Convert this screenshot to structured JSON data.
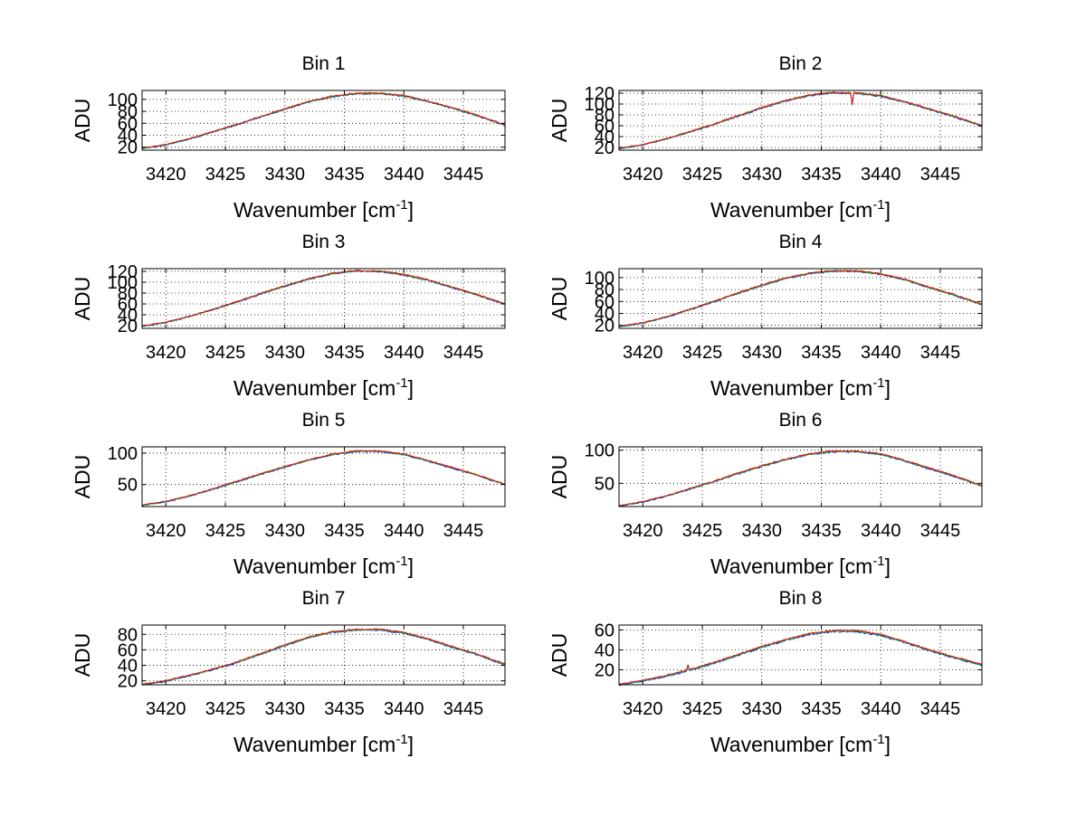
{
  "figure": {
    "background": "#ffffff",
    "grid": true,
    "grid_style": "dotted",
    "series_colors": [
      "#0000ff",
      "#00bfbf",
      "#00aa00",
      "#ff0000"
    ]
  },
  "chart_data": [
    {
      "type": "line",
      "title": "Bin 1",
      "xlabel": "Wavenumber [cm",
      "xlabel_sup": "-1",
      "xlabel_tail": "]",
      "ylabel": "ADU",
      "xlim": [
        3418,
        3448.5
      ],
      "ylim": [
        15,
        115
      ],
      "xticks": [
        3420,
        3425,
        3430,
        3435,
        3440,
        3445
      ],
      "yticks": [
        20,
        40,
        60,
        80,
        100
      ],
      "ytick_labels": [
        "20",
        "40",
        "60",
        "80",
        "100"
      ],
      "x": [
        3418,
        3420,
        3422,
        3424,
        3426,
        3428,
        3430,
        3432,
        3434,
        3436,
        3438,
        3440,
        3442,
        3444,
        3446,
        3448.5
      ],
      "y": [
        18,
        24,
        34,
        46,
        58,
        71,
        84,
        96,
        105,
        110,
        110,
        106,
        97,
        86,
        74,
        57
      ],
      "noise": 1.2
    },
    {
      "type": "line",
      "title": "Bin 2",
      "xlabel": "Wavenumber [cm",
      "xlabel_sup": "-1",
      "xlabel_tail": "]",
      "ylabel": "ADU",
      "xlim": [
        3418,
        3448.5
      ],
      "ylim": [
        15,
        125
      ],
      "xticks": [
        3420,
        3425,
        3430,
        3435,
        3440,
        3445
      ],
      "yticks": [
        20,
        40,
        60,
        80,
        100,
        120
      ],
      "ytick_labels": [
        "20",
        "40",
        "60",
        "80",
        "100",
        "120"
      ],
      "x": [
        3418,
        3420,
        3422,
        3424,
        3426,
        3428,
        3430,
        3432,
        3434,
        3436,
        3438,
        3440,
        3442,
        3444,
        3446,
        3448.5
      ],
      "y": [
        18,
        25,
        36,
        49,
        63,
        78,
        93,
        106,
        116,
        121,
        120,
        115,
        104,
        91,
        78,
        60
      ],
      "noise": 1.5,
      "dips": [
        {
          "x": 3437.6,
          "depth": 22
        }
      ]
    },
    {
      "type": "line",
      "title": "Bin 3",
      "xlabel": "Wavenumber [cm",
      "xlabel_sup": "-1",
      "xlabel_tail": "]",
      "ylabel": "ADU",
      "xlim": [
        3418,
        3448.5
      ],
      "ylim": [
        15,
        125
      ],
      "xticks": [
        3420,
        3425,
        3430,
        3435,
        3440,
        3445
      ],
      "yticks": [
        20,
        40,
        60,
        80,
        100,
        120
      ],
      "ytick_labels": [
        "20",
        "40",
        "60",
        "80",
        "100",
        "120"
      ],
      "x": [
        3418,
        3420,
        3422,
        3424,
        3426,
        3428,
        3430,
        3432,
        3434,
        3436,
        3438,
        3440,
        3442,
        3444,
        3446,
        3448.5
      ],
      "y": [
        19,
        26,
        37,
        50,
        64,
        79,
        93,
        106,
        116,
        121,
        120,
        114,
        104,
        91,
        78,
        60
      ],
      "noise": 1.4
    },
    {
      "type": "line",
      "title": "Bin 4",
      "xlabel": "Wavenumber [cm",
      "xlabel_sup": "-1",
      "xlabel_tail": "]",
      "ylabel": "ADU",
      "xlim": [
        3418,
        3448.5
      ],
      "ylim": [
        15,
        115
      ],
      "xticks": [
        3420,
        3425,
        3430,
        3435,
        3440,
        3445
      ],
      "yticks": [
        20,
        40,
        60,
        80,
        100
      ],
      "ytick_labels": [
        "20",
        "40",
        "60",
        "80",
        "100"
      ],
      "x": [
        3418,
        3420,
        3422,
        3424,
        3426,
        3428,
        3430,
        3432,
        3434,
        3436,
        3438,
        3440,
        3442,
        3444,
        3446,
        3448.5
      ],
      "y": [
        18,
        24,
        34,
        47,
        60,
        74,
        87,
        99,
        107,
        111,
        111,
        106,
        97,
        84,
        72,
        55
      ],
      "noise": 1.3
    },
    {
      "type": "line",
      "title": "Bin 5",
      "xlabel": "Wavenumber [cm",
      "xlabel_sup": "-1",
      "xlabel_tail": "]",
      "ylabel": "ADU",
      "xlim": [
        3418,
        3448.5
      ],
      "ylim": [
        15,
        110
      ],
      "xticks": [
        3420,
        3425,
        3430,
        3435,
        3440,
        3445
      ],
      "yticks": [
        50,
        100
      ],
      "ytick_labels": [
        "50",
        "100"
      ],
      "x": [
        3418,
        3420,
        3422,
        3424,
        3426,
        3428,
        3430,
        3432,
        3434,
        3436,
        3438,
        3440,
        3442,
        3444,
        3446,
        3448.5
      ],
      "y": [
        17,
        23,
        32,
        43,
        55,
        67,
        78,
        89,
        98,
        103,
        103,
        98,
        88,
        77,
        66,
        50
      ],
      "noise": 1.1
    },
    {
      "type": "line",
      "title": "Bin 6",
      "xlabel": "Wavenumber [cm",
      "xlabel_sup": "-1",
      "xlabel_tail": "]",
      "ylabel": "ADU",
      "xlim": [
        3418,
        3448.5
      ],
      "ylim": [
        15,
        105
      ],
      "xticks": [
        3420,
        3425,
        3430,
        3435,
        3440,
        3445
      ],
      "yticks": [
        50,
        100
      ],
      "ytick_labels": [
        "50",
        "100"
      ],
      "x": [
        3418,
        3420,
        3422,
        3424,
        3426,
        3428,
        3430,
        3432,
        3434,
        3436,
        3438,
        3440,
        3442,
        3444,
        3446,
        3448.5
      ],
      "y": [
        16,
        22,
        31,
        42,
        53,
        65,
        76,
        86,
        94,
        98,
        98,
        94,
        84,
        73,
        62,
        46
      ],
      "noise": 1.2
    },
    {
      "type": "line",
      "title": "Bin 7",
      "xlabel": "Wavenumber [cm",
      "xlabel_sup": "-1",
      "xlabel_tail": "]",
      "ylabel": "ADU",
      "xlim": [
        3418,
        3448.5
      ],
      "ylim": [
        15,
        92
      ],
      "xticks": [
        3420,
        3425,
        3430,
        3435,
        3440,
        3445
      ],
      "yticks": [
        20,
        40,
        60,
        80
      ],
      "ytick_labels": [
        "20",
        "40",
        "60",
        "80"
      ],
      "x": [
        3418,
        3420,
        3422,
        3424,
        3426,
        3428,
        3430,
        3432,
        3434,
        3436,
        3438,
        3440,
        3442,
        3444,
        3446,
        3448.5
      ],
      "y": [
        15,
        20,
        27,
        35,
        44,
        55,
        66,
        76,
        83,
        86,
        86,
        82,
        74,
        64,
        55,
        41
      ],
      "noise": 1.0
    },
    {
      "type": "line",
      "title": "Bin 8",
      "xlabel": "Wavenumber [cm",
      "xlabel_sup": "-1",
      "xlabel_tail": "]",
      "ylabel": "ADU",
      "xlim": [
        3418,
        3448.5
      ],
      "ylim": [
        5,
        65
      ],
      "xticks": [
        3420,
        3425,
        3430,
        3435,
        3440,
        3445
      ],
      "yticks": [
        20,
        40,
        60
      ],
      "ytick_labels": [
        "20",
        "40",
        "60"
      ],
      "x": [
        3418,
        3420,
        3422,
        3424,
        3426,
        3428,
        3430,
        3432,
        3434,
        3436,
        3438,
        3440,
        3442,
        3444,
        3446,
        3448.5
      ],
      "y": [
        5,
        9,
        14,
        20,
        27,
        35,
        43,
        50,
        56,
        59,
        59,
        55,
        48,
        40,
        33,
        25
      ],
      "noise": 0.9,
      "spikes": [
        {
          "x": 3423.8,
          "height": 6
        }
      ]
    }
  ]
}
